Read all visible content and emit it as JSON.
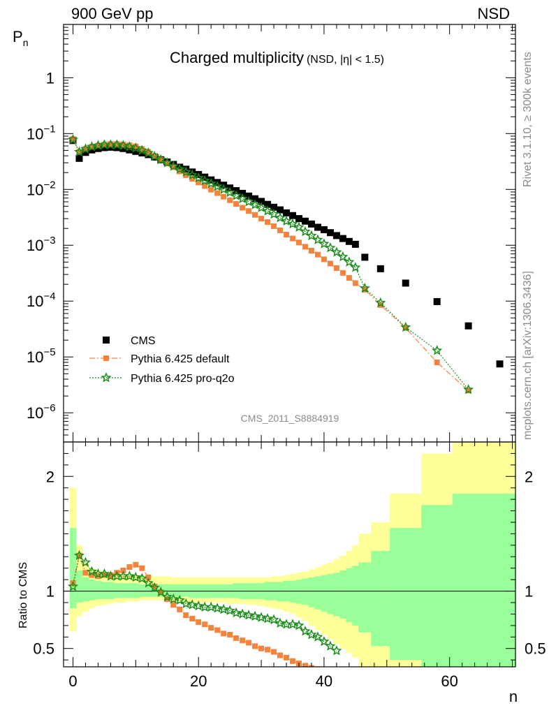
{
  "chart_data": [
    {
      "type": "scatter",
      "top_left": "900 GeV pp",
      "top_right": "NSD",
      "title": "Charged multiplicity",
      "title_note": "(NSD, |η| < 1.5)",
      "ylabel": "P",
      "ylabel_sub": "n",
      "yscale": "log",
      "xlim": [
        -1.5,
        70.5
      ],
      "ylim": [
        3e-07,
        9
      ],
      "y_ticks": [
        {
          "value": 1,
          "mant": "1",
          "exp": ""
        },
        {
          "value": 0.1,
          "mant": "10",
          "exp": "−1"
        },
        {
          "value": 0.01,
          "mant": "10",
          "exp": "−2"
        },
        {
          "value": 0.001,
          "mant": "10",
          "exp": "−3"
        },
        {
          "value": 0.0001,
          "mant": "10",
          "exp": "−4"
        },
        {
          "value": 1e-05,
          "mant": "10",
          "exp": "−5"
        },
        {
          "value": 1e-06,
          "mant": "10",
          "exp": "−6"
        }
      ],
      "analysis_tag": "CMS_2011_S8884919",
      "side_label_top": "Rivet 3.1.10, ≥ 300k events",
      "side_label_bottom": "mcplots.cern.ch [arXiv:1306.3436]",
      "legend_position": "bottom-left",
      "series": [
        {
          "name": "CMS",
          "color": "#000000",
          "marker": "square",
          "x": [
            0,
            1,
            2,
            3,
            4,
            5,
            6,
            7,
            8,
            9,
            10,
            11,
            12,
            13,
            14,
            15,
            16,
            17,
            18,
            19,
            20,
            21,
            22,
            23,
            24,
            25,
            26,
            27,
            28,
            29,
            30,
            31,
            32,
            33,
            34,
            35,
            36,
            37,
            38,
            39,
            40,
            41,
            42,
            43,
            44,
            45,
            46.5,
            49,
            53,
            58,
            63,
            68
          ],
          "y": [
            0.075,
            0.036,
            0.046,
            0.051,
            0.054,
            0.056,
            0.057,
            0.056,
            0.054,
            0.051,
            0.048,
            0.045,
            0.042,
            0.038,
            0.034,
            0.031,
            0.028,
            0.025,
            0.023,
            0.0205,
            0.0185,
            0.0166,
            0.0148,
            0.0133,
            0.0119,
            0.0106,
            0.0095,
            0.0085,
            0.0076,
            0.0068,
            0.0061,
            0.0054,
            0.0048,
            0.0043,
            0.0038,
            0.0034,
            0.003,
            0.0027,
            0.0024,
            0.0021,
            0.0019,
            0.00168,
            0.00149,
            0.00132,
            0.00117,
            0.00104,
            0.00061,
            0.00038,
            0.00021,
            9.8e-05,
            3.6e-05,
            7.5e-06
          ]
        },
        {
          "name": "Pythia 6.425 default",
          "color": "#f5833c",
          "marker": "square",
          "line": "dashdot",
          "x": [
            0,
            1,
            2,
            3,
            4,
            5,
            6,
            7,
            8,
            9,
            10,
            11,
            12,
            13,
            14,
            15,
            16,
            17,
            18,
            19,
            20,
            21,
            22,
            23,
            24,
            25,
            26,
            27,
            28,
            29,
            30,
            31,
            32,
            33,
            34,
            35,
            36,
            37,
            38,
            39,
            40,
            41,
            42,
            43,
            44,
            45,
            46.5,
            49,
            53,
            58,
            63
          ],
          "y": [
            0.08,
            0.047,
            0.053,
            0.058,
            0.061,
            0.064,
            0.065,
            0.065,
            0.064,
            0.062,
            0.059,
            0.053,
            0.047,
            0.04,
            0.034,
            0.029,
            0.025,
            0.021,
            0.018,
            0.0155,
            0.0133,
            0.0115,
            0.0099,
            0.0086,
            0.0074,
            0.0064,
            0.0055,
            0.0047,
            0.0041,
            0.0035,
            0.003,
            0.0026,
            0.0022,
            0.00185,
            0.00155,
            0.00132,
            0.00112,
            0.00094,
            0.0008,
            0.00068,
            0.00056,
            0.00047,
            0.00039,
            0.00032,
            0.00026,
            0.00021,
            0.00016,
            8.5e-05,
            3.3e-05,
            8e-06,
            2.5e-06
          ]
        },
        {
          "name": "Pythia 6.425 pro-q2o",
          "color": "#1a8c1a",
          "marker": "star",
          "line": "dotted",
          "x": [
            0,
            1,
            2,
            3,
            4,
            5,
            6,
            7,
            8,
            9,
            10,
            11,
            12,
            13,
            14,
            15,
            16,
            17,
            18,
            19,
            20,
            21,
            22,
            23,
            24,
            25,
            26,
            27,
            28,
            29,
            30,
            31,
            32,
            33,
            34,
            35,
            36,
            37,
            38,
            39,
            40,
            41,
            42,
            43,
            44,
            45,
            46.5,
            49,
            53,
            58,
            63
          ],
          "y": [
            0.078,
            0.047,
            0.053,
            0.058,
            0.061,
            0.063,
            0.063,
            0.063,
            0.061,
            0.058,
            0.055,
            0.05,
            0.045,
            0.039,
            0.034,
            0.03,
            0.026,
            0.023,
            0.0205,
            0.018,
            0.016,
            0.0143,
            0.0127,
            0.0113,
            0.01,
            0.0088,
            0.0077,
            0.0068,
            0.006,
            0.0053,
            0.0047,
            0.0041,
            0.0036,
            0.0031,
            0.0027,
            0.0024,
            0.0021,
            0.00175,
            0.00148,
            0.00125,
            0.00106,
            0.0009,
            0.00075,
            0.00062,
            0.0005,
            0.0004,
            0.00017,
            9.3e-05,
            3.4e-05,
            1.3e-05,
            2.6e-06
          ]
        }
      ]
    },
    {
      "type": "scatter",
      "ylabel": "Ratio to CMS",
      "xlabel": "n",
      "xlim": [
        -1.5,
        70.5
      ],
      "ylim": [
        0.34,
        2.3
      ],
      "x_ticks": [
        0,
        20,
        40,
        60
      ],
      "y_ticks": [
        0.5,
        1,
        2
      ],
      "reference_line": 1,
      "uncertainty_bands": [
        {
          "name": "yellow",
          "color": "#ffff99",
          "lower": [
            0.65,
            0.78,
            0.82,
            0.85,
            0.87,
            0.88,
            0.89,
            0.9,
            0.9,
            0.91,
            0.91,
            0.92,
            0.92,
            0.92,
            0.92,
            0.92,
            0.91,
            0.91,
            0.9,
            0.9,
            0.9,
            0.9,
            0.9,
            0.9,
            0.9,
            0.89,
            0.89,
            0.89,
            0.88,
            0.88,
            0.87,
            0.86,
            0.85,
            0.84,
            0.82,
            0.8,
            0.77,
            0.74,
            0.7,
            0.66,
            0.62,
            0.58,
            0.54,
            0.5,
            0.46,
            0.42,
            0.34,
            0.34,
            0.34,
            0.34,
            0.34
          ],
          "upper": [
            1.9,
            1.4,
            1.25,
            1.2,
            1.18,
            1.17,
            1.16,
            1.15,
            1.15,
            1.15,
            1.14,
            1.14,
            1.14,
            1.13,
            1.13,
            1.13,
            1.12,
            1.12,
            1.12,
            1.12,
            1.12,
            1.12,
            1.12,
            1.12,
            1.12,
            1.12,
            1.12,
            1.12,
            1.12,
            1.12,
            1.12,
            1.12,
            1.13,
            1.13,
            1.14,
            1.15,
            1.16,
            1.17,
            1.19,
            1.21,
            1.23,
            1.25,
            1.28,
            1.31,
            1.35,
            1.4,
            1.5,
            1.6,
            1.85,
            2.2,
            2.4
          ]
        },
        {
          "name": "green",
          "color": "#99ff99",
          "lower": [
            0.85,
            0.9,
            0.91,
            0.92,
            0.93,
            0.93,
            0.93,
            0.94,
            0.94,
            0.94,
            0.94,
            0.95,
            0.95,
            0.95,
            0.95,
            0.95,
            0.95,
            0.95,
            0.95,
            0.94,
            0.94,
            0.94,
            0.94,
            0.94,
            0.94,
            0.94,
            0.94,
            0.93,
            0.93,
            0.93,
            0.93,
            0.92,
            0.92,
            0.91,
            0.91,
            0.9,
            0.89,
            0.88,
            0.86,
            0.84,
            0.82,
            0.8,
            0.78,
            0.76,
            0.73,
            0.7,
            0.64,
            0.52,
            0.4,
            0.34,
            0.34
          ],
          "upper": [
            1.55,
            1.18,
            1.12,
            1.1,
            1.09,
            1.08,
            1.08,
            1.07,
            1.07,
            1.07,
            1.07,
            1.06,
            1.06,
            1.06,
            1.06,
            1.06,
            1.06,
            1.06,
            1.06,
            1.06,
            1.06,
            1.06,
            1.06,
            1.06,
            1.06,
            1.06,
            1.07,
            1.07,
            1.07,
            1.07,
            1.07,
            1.08,
            1.08,
            1.08,
            1.09,
            1.09,
            1.1,
            1.11,
            1.12,
            1.13,
            1.14,
            1.15,
            1.16,
            1.18,
            1.2,
            1.22,
            1.25,
            1.35,
            1.55,
            1.75,
            1.85
          ]
        }
      ],
      "band_x_edges": [
        -0.5,
        0.5,
        1.5,
        2.5,
        3.5,
        4.5,
        5.5,
        6.5,
        7.5,
        8.5,
        9.5,
        10.5,
        11.5,
        12.5,
        13.5,
        14.5,
        15.5,
        16.5,
        17.5,
        18.5,
        19.5,
        20.5,
        21.5,
        22.5,
        23.5,
        24.5,
        25.5,
        26.5,
        27.5,
        28.5,
        29.5,
        30.5,
        31.5,
        32.5,
        33.5,
        34.5,
        35.5,
        36.5,
        37.5,
        38.5,
        39.5,
        40.5,
        41.5,
        42.5,
        43.5,
        44.5,
        45.5,
        47.5,
        50.5,
        55.5,
        60.5,
        70.5
      ],
      "series": [
        {
          "name": "Pythia 6.425 default",
          "color": "#f5833c",
          "marker": "square",
          "x": [
            0,
            1,
            2,
            3,
            4,
            5,
            6,
            7,
            8,
            9,
            10,
            11,
            12,
            13,
            14,
            15,
            16,
            17,
            18,
            19,
            20,
            21,
            22,
            23,
            24,
            25,
            26,
            27,
            28,
            29,
            30,
            31,
            32,
            33,
            34,
            35,
            36,
            37,
            38,
            39,
            40,
            41,
            42
          ],
          "y": [
            1.07,
            1.31,
            1.16,
            1.14,
            1.13,
            1.14,
            1.14,
            1.16,
            1.18,
            1.21,
            1.23,
            1.2,
            1.12,
            1.04,
            0.99,
            0.93,
            0.88,
            0.84,
            0.79,
            0.76,
            0.73,
            0.71,
            0.68,
            0.66,
            0.63,
            0.62,
            0.59,
            0.57,
            0.55,
            0.52,
            0.5,
            0.49,
            0.47,
            0.44,
            0.42,
            0.39,
            0.37,
            0.35,
            0.33,
            0.32,
            0.3,
            0.28,
            0.26
          ]
        },
        {
          "name": "Pythia 6.425 pro-q2o",
          "color": "#1a8c1a",
          "marker": "star",
          "x": [
            0,
            1,
            2,
            3,
            4,
            5,
            6,
            7,
            8,
            9,
            10,
            11,
            12,
            13,
            14,
            15,
            16,
            17,
            18,
            19,
            20,
            21,
            22,
            23,
            24,
            25,
            26,
            27,
            28,
            29,
            30,
            31,
            32,
            33,
            34,
            35,
            36,
            37,
            38,
            39,
            40,
            41,
            42
          ],
          "y": [
            1.04,
            1.31,
            1.25,
            1.17,
            1.15,
            1.15,
            1.13,
            1.13,
            1.13,
            1.13,
            1.12,
            1.11,
            1.07,
            1.03,
            0.99,
            0.95,
            0.93,
            0.92,
            0.89,
            0.88,
            0.87,
            0.86,
            0.86,
            0.85,
            0.84,
            0.83,
            0.81,
            0.8,
            0.79,
            0.78,
            0.77,
            0.76,
            0.75,
            0.72,
            0.71,
            0.71,
            0.7,
            0.65,
            0.62,
            0.6,
            0.56,
            0.52,
            0.48
          ]
        }
      ]
    }
  ]
}
